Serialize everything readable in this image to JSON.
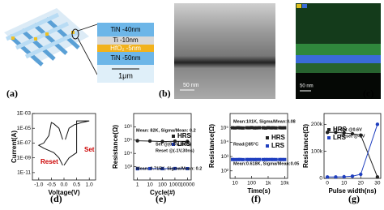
{
  "figure": {
    "labels": [
      "(a)",
      "(b)",
      "(c)",
      "(d)",
      "(e)",
      "(f)",
      "(g)"
    ],
    "stack": [
      "TiN -40nm",
      "Ti -10nm",
      "HfO₂ -5nm",
      "TiN -50nm"
    ],
    "stack_scale": "1μm",
    "tem_scale": "50 nm",
    "eds_scale": "50 nm"
  },
  "chart_data": [
    {
      "type": "line",
      "x_label": "Voltage(V)",
      "y_label": "Current(A)",
      "ylog": true,
      "xlim": [
        -1.25,
        1.25
      ],
      "xticks": [
        {
          "value": -1,
          "label": "-1.0"
        },
        -0.5,
        {
          "value": 0,
          "label": "0.0"
        },
        0.5,
        {
          "value": 1,
          "label": "1.0"
        }
      ],
      "ylim": [
        1e-12,
        0.001
      ],
      "yticks": [
        {
          "value": 0.001,
          "label": "1E-03"
        },
        {
          "value": 1e-05,
          "label": "1E-05"
        },
        {
          "value": 1e-07,
          "label": "1E-07"
        },
        {
          "value": 1e-09,
          "label": "1E-09"
        },
        {
          "value": 1e-11,
          "label": "1E-11"
        }
      ],
      "annotations": [
        "Set",
        "Reset"
      ],
      "series": [
        {
          "color": "#111111",
          "x": [
            0,
            0.2,
            0.4,
            0.5,
            0.5,
            0.7,
            1.0,
            0.7,
            0.4,
            0.2,
            0.05
          ],
          "values": [
            1e-10,
            1e-09,
            3e-09,
            5e-09,
            0.0001,
            0.0001,
            0.0001,
            6e-05,
            3e-05,
            1e-05,
            3e-07
          ]
        },
        {
          "color": "#111111",
          "x": [
            -0.05,
            -0.2,
            -0.4,
            -0.5,
            -0.6,
            -0.8,
            -1.0,
            -0.8,
            -0.6,
            -0.4,
            -0.2,
            -0.05
          ],
          "values": [
            3e-07,
            1e-05,
            4e-05,
            6e-05,
            1e-06,
            1e-07,
            5e-08,
            2e-08,
            1e-08,
            5e-09,
            1e-09,
            1e-10
          ]
        }
      ]
    },
    {
      "type": "line",
      "x_label": "Cycle(#)",
      "y_label": "Resistance(Ω)",
      "xlog": true,
      "ylog": true,
      "xlim": [
        0.5,
        20000
      ],
      "xticks": [
        1,
        10,
        100,
        1000,
        10000
      ],
      "ylim": [
        100,
        10000000.0
      ],
      "yticks": [
        {
          "value": 1000,
          "label": "10³"
        },
        {
          "value": 10000,
          "label": "10⁴"
        },
        {
          "value": 100000,
          "label": "10⁵"
        },
        {
          "value": 1000000,
          "label": "10⁶"
        }
      ],
      "annotations": [
        "Mean: 82K, Sigma/Mean: 0.2",
        "Set @(0.6V,30ns)",
        "Reset @(-1V,30ns)",
        "Mean: 0.715K, Sigma/Mean: 0.2"
      ],
      "series": [
        {
          "name": "HRS",
          "color": "#222222",
          "marker": "circle",
          "x": [
            1,
            10,
            100,
            1000,
            10000
          ],
          "values": [
            90000,
            85000,
            78000,
            82000,
            80000
          ]
        },
        {
          "name": "LRS",
          "color": "#1f3fbf",
          "marker": "square",
          "x": [
            1,
            10,
            100,
            1000,
            10000
          ],
          "values": [
            700,
            720,
            710,
            730,
            715
          ]
        }
      ]
    },
    {
      "type": "line",
      "x_label": "Time(s)",
      "y_label": "Resistance(Ω)",
      "xlog": true,
      "ylog": true,
      "xlim": [
        5,
        15000
      ],
      "xticks": [
        10,
        100,
        {
          "value": 1000,
          "label": "1k"
        },
        {
          "value": 10000,
          "label": "10k"
        }
      ],
      "ylim": [
        30,
        1000000.0
      ],
      "yticks": [
        {
          "value": 100,
          "label": "10²"
        },
        {
          "value": 1000,
          "label": "10³"
        },
        {
          "value": 10000,
          "label": "10⁴"
        },
        {
          "value": 100000,
          "label": "10⁵"
        }
      ],
      "annotations": [
        "Mean:101K, Sigma/Mean:0.08",
        "Read@85°C",
        "Mean:0.618K, Sigma/Mean:0.05"
      ],
      "series": [
        {
          "name": "HRS",
          "color": "#222222",
          "marker": "square",
          "x": [
            7,
            10,
            15,
            20,
            30,
            50,
            70,
            100,
            150,
            200,
            300,
            500,
            700,
            1000,
            1500,
            2000,
            3000,
            5000,
            7000,
            10000
          ],
          "values": [
            101000,
            99000,
            103000,
            100000,
            98000,
            102000,
            101000,
            104000,
            99000,
            100000,
            102000,
            101000,
            98000,
            103000,
            100000,
            101000,
            99000,
            102000,
            100000,
            101000
          ]
        },
        {
          "name": "LRS",
          "color": "#1f3fbf",
          "marker": "square",
          "x": [
            7,
            10,
            15,
            20,
            30,
            50,
            70,
            100,
            150,
            200,
            300,
            500,
            700,
            1000,
            1500,
            2000,
            3000,
            5000,
            7000,
            10000
          ],
          "values": [
            620,
            615,
            618,
            622,
            610,
            619,
            617,
            620,
            616,
            618,
            621,
            615,
            619,
            617,
            620,
            618,
            616,
            619,
            618,
            617
          ]
        }
      ]
    },
    {
      "type": "line",
      "x_label": "Pulse width(ns)",
      "y_label": "Resistance(Ω)",
      "xlim": [
        -2,
        32
      ],
      "xticks": [
        0,
        10,
        20,
        30
      ],
      "ylim": [
        0,
        240000
      ],
      "yticks": [
        0,
        {
          "value": 100000,
          "label": "100k"
        },
        {
          "value": 200000,
          "label": "200k"
        }
      ],
      "annotations": [
        "Set @0.6V",
        "Reset @-1V"
      ],
      "series": [
        {
          "name": "HRS",
          "color": "#222222",
          "marker": "circle",
          "x": [
            0,
            5,
            10,
            15,
            20,
            30
          ],
          "values": [
            170000,
            170000,
            168000,
            165000,
            160000,
            5000
          ]
        },
        {
          "name": "LRS",
          "color": "#1f3fbf",
          "marker": "circle",
          "x": [
            0,
            5,
            10,
            15,
            20,
            30
          ],
          "values": [
            5000,
            5000,
            6000,
            8000,
            15000,
            200000
          ]
        }
      ]
    }
  ]
}
